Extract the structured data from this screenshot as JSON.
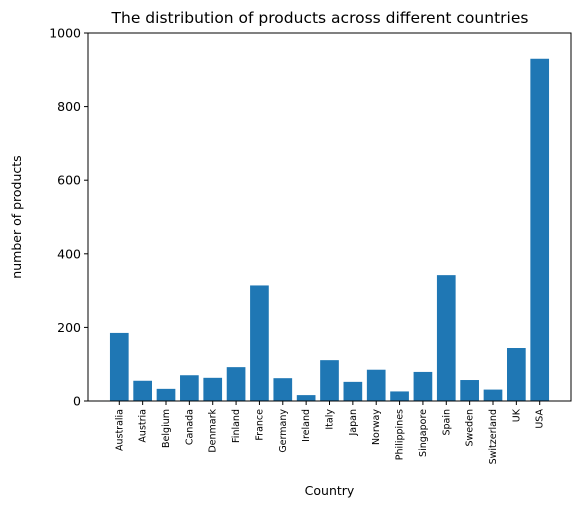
{
  "chart_data": {
    "type": "bar",
    "title": "The distribution of products across different countries",
    "xlabel": "Country",
    "ylabel": "number of products",
    "ylim": [
      0,
      1000
    ],
    "yticks": [
      0,
      200,
      400,
      600,
      800,
      1000
    ],
    "grid": false,
    "legend": "none",
    "bar_color": "#1f77b4",
    "categories": [
      "Australia",
      "Austria",
      "Belgium",
      "Canada",
      "Denmark",
      "Finland",
      "France",
      "Germany",
      "Ireland",
      "Italy",
      "Japan",
      "Norway",
      "Philippines",
      "Singapore",
      "Spain",
      "Sweden",
      "Switzerland",
      "UK",
      "USA"
    ],
    "values": [
      185,
      55,
      33,
      70,
      63,
      92,
      314,
      62,
      16,
      111,
      52,
      85,
      26,
      79,
      342,
      57,
      31,
      144,
      930
    ]
  }
}
